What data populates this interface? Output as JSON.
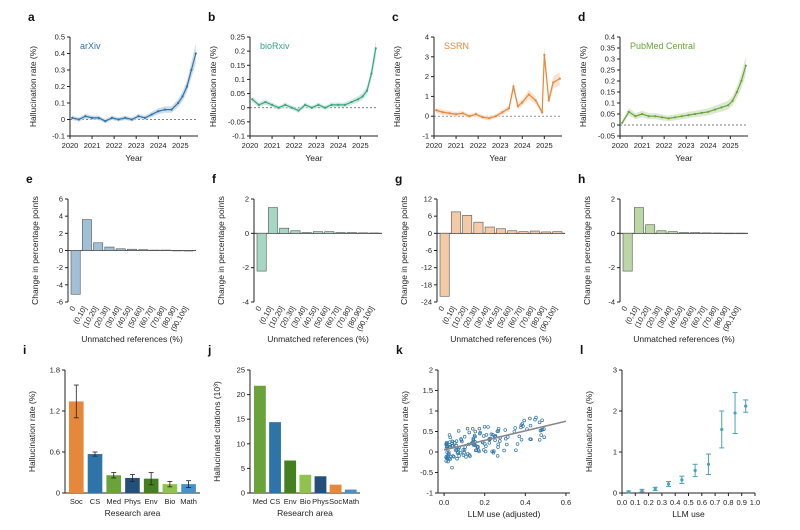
{
  "colors": {
    "arxiv": "#2f74a8",
    "biorxiv": "#3aa57f",
    "ssrn": "#e6873a",
    "pmc": "#6aa33a",
    "fit": "#888888"
  },
  "chart_data": [
    {
      "panel": "a",
      "type": "line",
      "title": "arXiv",
      "color": "arxiv",
      "xlabel": "Year",
      "ylabel": "Hallucination rate (%)",
      "xlim": [
        2020,
        2025.8
      ],
      "ylim": [
        -0.1,
        0.5
      ],
      "xticks": [
        "2020",
        "2021",
        "2022",
        "2023",
        "2024",
        "2025"
      ],
      "yticks": [
        "-0.1",
        "0",
        "0.1",
        "0.2",
        "0.3",
        "0.4",
        "0.5"
      ],
      "x": [
        2020.1,
        2020.4,
        2020.7,
        2021.0,
        2021.3,
        2021.6,
        2021.9,
        2022.2,
        2022.5,
        2022.8,
        2023.1,
        2023.4,
        2023.7,
        2024.0,
        2024.3,
        2024.6,
        2024.9,
        2025.1,
        2025.3,
        2025.5,
        2025.7
      ],
      "y": [
        0.01,
        0.0,
        0.02,
        0.01,
        0.01,
        -0.01,
        0.01,
        0.0,
        0.01,
        0.0,
        0.02,
        0.01,
        0.03,
        0.05,
        0.06,
        0.06,
        0.1,
        0.14,
        0.2,
        0.3,
        0.4
      ]
    },
    {
      "panel": "b",
      "type": "line",
      "title": "bioRxiv",
      "color": "biorxiv",
      "xlabel": "Year",
      "ylabel": "Hallucination rate (%)",
      "xlim": [
        2020,
        2025.8
      ],
      "ylim": [
        -0.1,
        0.25
      ],
      "xticks": [
        "2020",
        "2021",
        "2022",
        "2023",
        "2024",
        "2025"
      ],
      "yticks": [
        "-0.1",
        "-0.05",
        "0",
        "0.05",
        "0.1",
        "0.15",
        "0.2",
        "0.25"
      ],
      "x": [
        2020.1,
        2020.4,
        2020.7,
        2021.0,
        2021.3,
        2021.6,
        2021.9,
        2022.2,
        2022.5,
        2022.8,
        2023.1,
        2023.4,
        2023.7,
        2024.0,
        2024.3,
        2024.6,
        2024.9,
        2025.1,
        2025.3,
        2025.5,
        2025.7
      ],
      "y": [
        0.03,
        0.01,
        0.02,
        0.01,
        0.0,
        0.01,
        0.0,
        -0.01,
        0.01,
        0.0,
        0.01,
        0.0,
        0.01,
        0.01,
        0.01,
        0.02,
        0.03,
        0.04,
        0.06,
        0.12,
        0.21
      ]
    },
    {
      "panel": "c",
      "type": "line",
      "title": "SSRN",
      "color": "ssrn",
      "xlabel": "Year",
      "ylabel": "Hallucination rate (%)",
      "xlim": [
        2020,
        2025.8
      ],
      "ylim": [
        -1,
        4
      ],
      "xticks": [
        "2020",
        "2021",
        "2022",
        "2023",
        "2024",
        "2025"
      ],
      "yticks": [
        "-1",
        "0",
        "1",
        "2",
        "3",
        "4"
      ],
      "x": [
        2020.1,
        2020.4,
        2020.7,
        2021.0,
        2021.3,
        2021.6,
        2021.9,
        2022.2,
        2022.5,
        2022.8,
        2023.1,
        2023.4,
        2023.6,
        2023.8,
        2024.0,
        2024.3,
        2024.6,
        2024.9,
        2025.0,
        2025.2,
        2025.4,
        2025.7
      ],
      "y": [
        0.3,
        0.2,
        0.15,
        0.1,
        0.15,
        0.0,
        0.1,
        -0.05,
        -0.1,
        0.0,
        0.2,
        0.4,
        1.5,
        0.5,
        0.7,
        1.1,
        0.8,
        0.2,
        3.1,
        0.8,
        1.7,
        1.9
      ]
    },
    {
      "panel": "d",
      "type": "line",
      "title": "PubMed Central",
      "color": "pmc",
      "xlabel": "Year",
      "ylabel": "Hallucination rate (%)",
      "xlim": [
        2020,
        2025.8
      ],
      "ylim": [
        -0.05,
        0.4
      ],
      "xticks": [
        "2020",
        "2021",
        "2022",
        "2023",
        "2024",
        "2025"
      ],
      "yticks": [
        "-0.05",
        "0",
        "0.05",
        "0.1",
        "0.15",
        "0.2",
        "0.25",
        "0.3",
        "0.35",
        "0.4"
      ],
      "x": [
        2020.1,
        2020.4,
        2020.7,
        2021.0,
        2021.3,
        2021.6,
        2021.9,
        2022.2,
        2022.5,
        2022.8,
        2023.1,
        2023.4,
        2023.7,
        2024.0,
        2024.3,
        2024.6,
        2024.9,
        2025.1,
        2025.3,
        2025.5,
        2025.7
      ],
      "y": [
        0.01,
        0.06,
        0.04,
        0.05,
        0.04,
        0.04,
        0.035,
        0.03,
        0.035,
        0.04,
        0.045,
        0.05,
        0.055,
        0.06,
        0.07,
        0.08,
        0.09,
        0.11,
        0.15,
        0.2,
        0.27
      ]
    },
    {
      "panel": "e",
      "type": "bar",
      "color": "arxiv",
      "xlabel": "Unmatched references (%)",
      "ylabel": "Change in percentage points",
      "ylim": [
        -6,
        6
      ],
      "yticks": [
        "-6",
        "-4",
        "-2",
        "0",
        "2",
        "4",
        "6"
      ],
      "categories": [
        "0",
        "(0,10]",
        "(10,20]",
        "(20,30]",
        "(30,40]",
        "(40,50]",
        "(50,60]",
        "(60,70]",
        "(70,80]",
        "(80,90]",
        "(90,100]"
      ],
      "values": [
        -5.1,
        3.6,
        0.9,
        0.4,
        0.2,
        0.15,
        0.1,
        0.05,
        0.05,
        0.02,
        0.01
      ]
    },
    {
      "panel": "f",
      "type": "bar",
      "color": "biorxiv",
      "xlabel": "Unmatched references (%)",
      "ylabel": "Change in percentage points",
      "ylim": [
        -4,
        2
      ],
      "yticks": [
        "-4",
        "-2",
        "0",
        "2"
      ],
      "categories": [
        "0",
        "(0,10]",
        "(10,20]",
        "(20,30]",
        "(30,40]",
        "(40,50]",
        "(50,60]",
        "(60,70]",
        "(70,80]",
        "(80,90]",
        "(90,100]"
      ],
      "values": [
        -2.2,
        1.5,
        0.3,
        0.15,
        0.05,
        0.1,
        0.1,
        0.05,
        0.05,
        0.03,
        0.02
      ]
    },
    {
      "panel": "g",
      "type": "bar",
      "color": "ssrn",
      "xlabel": "Unmatched references (%)",
      "ylabel": "Change in percentage points",
      "ylim": [
        -24,
        12
      ],
      "yticks": [
        "-24",
        "-18",
        "-12",
        "-6",
        "0",
        "6",
        "12"
      ],
      "categories": [
        "0",
        "(0,10]",
        "(10,20]",
        "(20,30]",
        "(30,40]",
        "(40,50]",
        "(50,60]",
        "(60,70]",
        "(70,80]",
        "(80,90]",
        "(90,100]"
      ],
      "values": [
        -22,
        7.5,
        6.3,
        3.9,
        2.2,
        1.6,
        0.9,
        0.6,
        0.8,
        0.5,
        0.6
      ]
    },
    {
      "panel": "h",
      "type": "bar",
      "color": "pmc",
      "xlabel": "Unmatched references (%)",
      "ylabel": "Change in percentage points",
      "ylim": [
        -4,
        2
      ],
      "yticks": [
        "-4",
        "-2",
        "0",
        "2"
      ],
      "categories": [
        "0",
        "(0,10]",
        "(10,20]",
        "(20,30]",
        "(30,40]",
        "(40,50]",
        "(50,60]",
        "(60,70]",
        "(70,80]",
        "(80,90]",
        "(90,100]"
      ],
      "values": [
        -2.2,
        1.5,
        0.5,
        0.15,
        0.1,
        0.05,
        0.05,
        0.03,
        0.02,
        0.01,
        0.01
      ]
    },
    {
      "panel": "i",
      "type": "bar",
      "error_bars": true,
      "xlabel": "Research area",
      "ylabel": "Hallucination rate (%)",
      "ylim": [
        0,
        1.8
      ],
      "yticks": [
        "0",
        "0.6",
        "1.2",
        "1.8"
      ],
      "categories": [
        "Soc",
        "CS",
        "Med",
        "Phys",
        "Env",
        "Bio",
        "Math"
      ],
      "values": [
        1.34,
        0.57,
        0.26,
        0.22,
        0.21,
        0.13,
        0.13
      ],
      "errors": [
        0.24,
        0.03,
        0.04,
        0.05,
        0.09,
        0.04,
        0.05
      ],
      "bar_colors": [
        "#e6873a",
        "#2f74a8",
        "#6aa33a",
        "#23507a",
        "#44801f",
        "#8fc24f",
        "#4c8fc8"
      ]
    },
    {
      "panel": "j",
      "type": "bar",
      "xlabel": "Research area",
      "ylabel": "Hallucinated citations (10³)",
      "ylim": [
        0,
        25
      ],
      "yticks": [
        "0",
        "5",
        "10",
        "15",
        "20",
        "25"
      ],
      "categories": [
        "Med",
        "CS",
        "Env",
        "Bio",
        "Phys",
        "Soc",
        "Math"
      ],
      "values": [
        21.8,
        14.4,
        6.6,
        3.7,
        3.4,
        1.7,
        0.7
      ],
      "bar_colors": [
        "#6aa33a",
        "#2f74a8",
        "#44801f",
        "#8fc24f",
        "#23507a",
        "#e6873a",
        "#4c8fc8"
      ]
    },
    {
      "panel": "k",
      "type": "scatter",
      "xlabel": "LLM use (adjusted)",
      "ylabel": "Hallucination rate (%)",
      "xlim": [
        -0.03,
        0.62
      ],
      "ylim": [
        -1,
        2
      ],
      "xticks": [
        "0.0",
        "0.2",
        "0.4",
        "0.6"
      ],
      "yticks": [
        "-1",
        "-0.5",
        "0",
        "0.5",
        "1",
        "1.5",
        "2"
      ],
      "fit": [
        [
          0.0,
          0.05
        ],
        [
          0.6,
          0.75
        ]
      ]
    },
    {
      "panel": "l",
      "type": "scatter",
      "error_bars": true,
      "xlabel": "LLM use",
      "ylabel": "Hallucination rate (%)",
      "xlim": [
        0,
        1
      ],
      "ylim": [
        0,
        3
      ],
      "xticks": [
        "0.0",
        "0.1",
        "0.2",
        "0.3",
        "0.4",
        "0.5",
        "0.6",
        "0.7",
        "0.8",
        "0.9",
        "1.0"
      ],
      "yticks": [
        "0",
        "1",
        "2",
        "3"
      ],
      "x": [
        0.05,
        0.15,
        0.25,
        0.35,
        0.45,
        0.55,
        0.65,
        0.75,
        0.85,
        0.93
      ],
      "y": [
        0.03,
        0.06,
        0.1,
        0.22,
        0.32,
        0.55,
        0.7,
        1.55,
        1.95,
        2.12
      ],
      "errors": [
        0.02,
        0.03,
        0.04,
        0.06,
        0.09,
        0.15,
        0.25,
        0.45,
        0.5,
        0.15
      ]
    }
  ]
}
